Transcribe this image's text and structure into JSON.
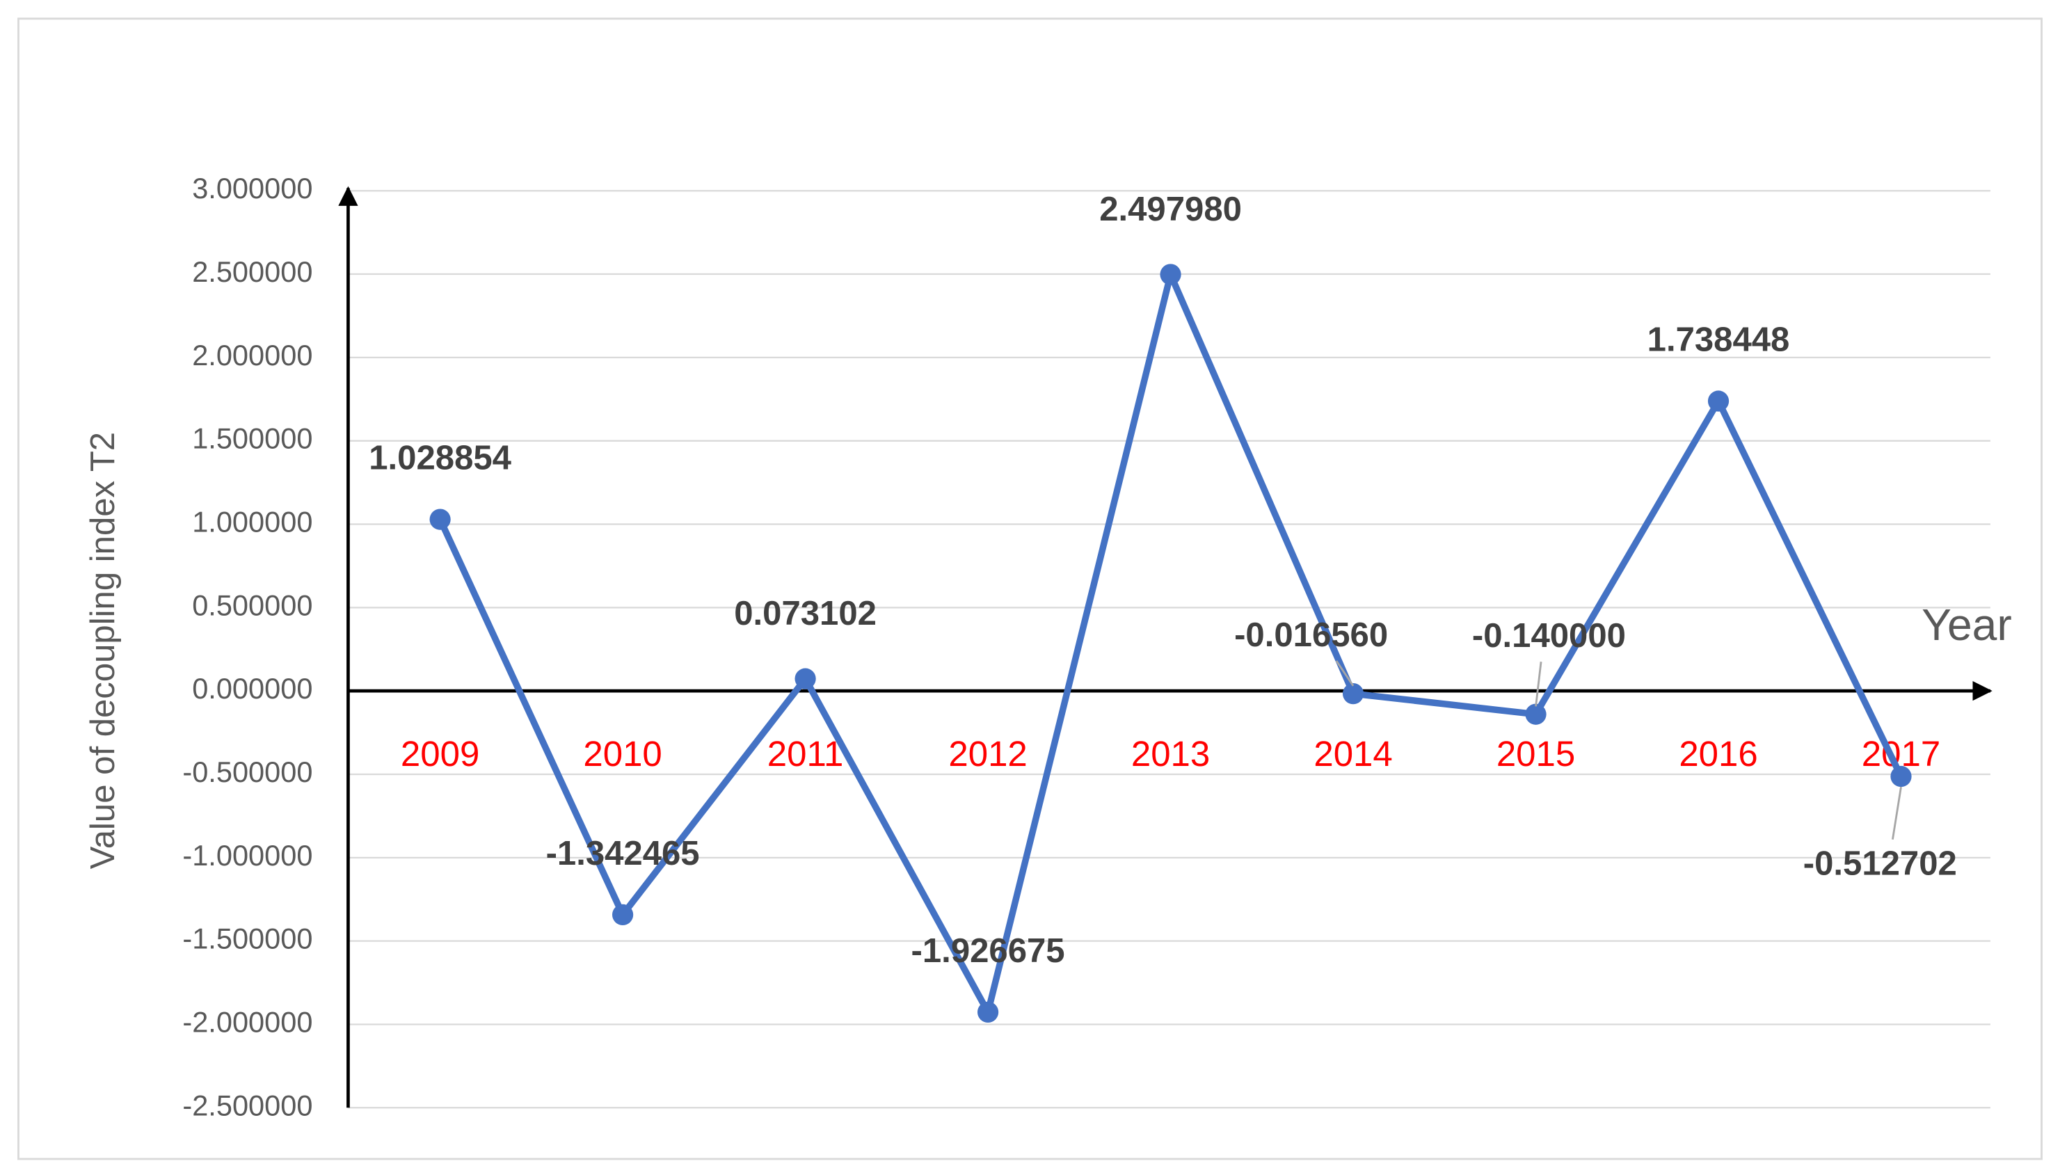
{
  "chart_data": {
    "type": "line",
    "y_label": "Value of decoupling index T2",
    "x_label": "Year",
    "categories": [
      "2009",
      "2010",
      "2011",
      "2012",
      "2013",
      "2014",
      "2015",
      "2016",
      "2017"
    ],
    "series": [
      {
        "name": "Value of decoupling index T2",
        "color": "#4472c4",
        "values": [
          1.028854,
          -1.342465,
          0.073102,
          -1.926675,
          2.49798,
          -0.01656,
          -0.14,
          1.738448,
          -0.512702
        ],
        "value_labels": [
          "1.028854",
          "-1.342465",
          "0.073102",
          "-1.926675",
          "2.497980",
          "-0.016560",
          "-0.140000",
          "1.738448",
          "-0.512702"
        ]
      }
    ],
    "category_color": "#ff0000",
    "ylim": [
      -2.5,
      3
    ],
    "yticks": [
      {
        "value": -2.5,
        "label": "-2.500000"
      },
      {
        "value": -2,
        "label": "-2.000000"
      },
      {
        "value": -1.5,
        "label": "-1.500000"
      },
      {
        "value": -1,
        "label": "-1.000000"
      },
      {
        "value": -0.5,
        "label": "-0.500000"
      },
      {
        "value": 0,
        "label": "0.000000"
      },
      {
        "value": 0.5,
        "label": "0.500000"
      },
      {
        "value": 1,
        "label": "1.000000"
      },
      {
        "value": 1.5,
        "label": "1.500000"
      },
      {
        "value": 2,
        "label": "2.000000"
      },
      {
        "value": 2.5,
        "label": "2.500000"
      },
      {
        "value": 3,
        "label": "3.000000"
      }
    ],
    "grid": true
  }
}
